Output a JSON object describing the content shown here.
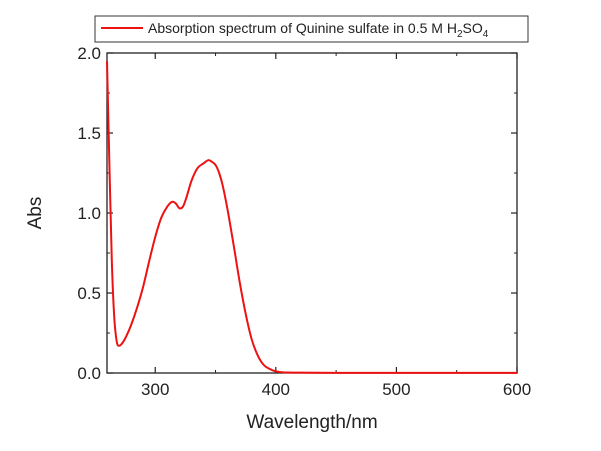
{
  "chart_data": {
    "type": "line",
    "title": "",
    "xlabel": "Wavelength/nm",
    "ylabel": "Abs",
    "xlim": [
      260,
      600
    ],
    "ylim": [
      0,
      2.0
    ],
    "x_ticks": [
      300,
      400,
      500,
      600
    ],
    "x_tick_labels": [
      "300",
      "400",
      "500",
      "600"
    ],
    "y_ticks": [
      0.0,
      0.5,
      1.0,
      1.5,
      2.0
    ],
    "y_tick_labels": [
      "0.0",
      "0.5",
      "1.0",
      "1.5",
      "2.0"
    ],
    "grid": false,
    "legend_position": "top",
    "legend": {
      "prefix": "Absorption spectrum of Quinine sulfate in 0.5 M H",
      "sub1": "2",
      "mid": "SO",
      "sub2": "4"
    },
    "series": [
      {
        "color": "#ee1111",
        "x": [
          260,
          262,
          264,
          266,
          268,
          270,
          273,
          276,
          280,
          285,
          290,
          295,
          300,
          305,
          310,
          314,
          317,
          320,
          323,
          326,
          330,
          335,
          340,
          344,
          347,
          350,
          353,
          356,
          360,
          365,
          370,
          375,
          380,
          385,
          390,
          395,
          400,
          405,
          410,
          420,
          450,
          500,
          550,
          600
        ],
        "y": [
          1.95,
          1.3,
          0.7,
          0.35,
          0.2,
          0.17,
          0.19,
          0.23,
          0.3,
          0.41,
          0.54,
          0.7,
          0.85,
          0.97,
          1.04,
          1.07,
          1.06,
          1.03,
          1.04,
          1.1,
          1.2,
          1.28,
          1.31,
          1.33,
          1.32,
          1.3,
          1.25,
          1.17,
          1.02,
          0.8,
          0.57,
          0.37,
          0.21,
          0.11,
          0.05,
          0.025,
          0.01,
          0.005,
          0.003,
          0.002,
          0.001,
          0.001,
          0.001,
          0.001
        ]
      }
    ]
  }
}
